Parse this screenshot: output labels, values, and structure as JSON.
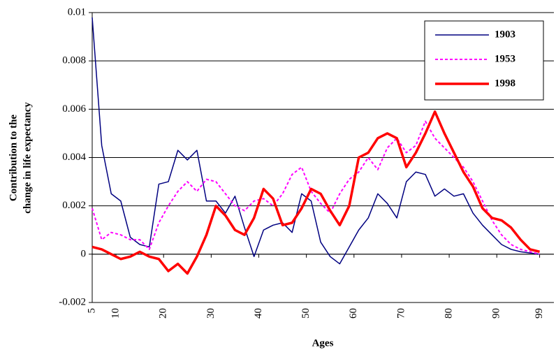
{
  "chart_data": {
    "type": "line",
    "ylabel": [
      "Contribution to the",
      "change in life expectancy"
    ],
    "xlabel": "Ages",
    "x": [
      5,
      7,
      9,
      11,
      13,
      15,
      17,
      19,
      21,
      23,
      25,
      27,
      29,
      31,
      33,
      35,
      37,
      39,
      41,
      43,
      45,
      47,
      49,
      51,
      53,
      55,
      57,
      59,
      61,
      63,
      65,
      67,
      69,
      71,
      73,
      75,
      77,
      79,
      81,
      83,
      85,
      87,
      89,
      91,
      93,
      95,
      97,
      99
    ],
    "series": [
      {
        "name": "1903",
        "color": "#000080",
        "linestyle": "solid",
        "values": [
          0.0098,
          0.0045,
          0.0025,
          0.0022,
          0.0007,
          0.0004,
          0.0003,
          0.0029,
          0.003,
          0.0043,
          0.0039,
          0.0043,
          0.0022,
          0.0022,
          0.0017,
          0.0024,
          0.0011,
          -0.0001,
          0.001,
          0.0012,
          0.0013,
          0.0009,
          0.0025,
          0.0022,
          0.0005,
          -0.0001,
          -0.0004,
          0.0003,
          0.001,
          0.0015,
          0.0025,
          0.0021,
          0.0015,
          0.003,
          0.0034,
          0.0033,
          0.0024,
          0.0027,
          0.0024,
          0.0025,
          0.0017,
          0.0012,
          0.0008,
          0.0004,
          0.0002,
          0.0001,
          5e-05,
          0
        ]
      },
      {
        "name": "1953",
        "color": "#ff00ff",
        "linestyle": "dotted",
        "values": [
          0.0019,
          0.0006,
          0.0009,
          0.0008,
          0.0006,
          0.0006,
          0.0002,
          0.0013,
          0.002,
          0.0026,
          0.003,
          0.0026,
          0.0031,
          0.003,
          0.0025,
          0.002,
          0.0018,
          0.0022,
          0.0023,
          0.002,
          0.0025,
          0.0033,
          0.0036,
          0.0026,
          0.0021,
          0.0017,
          0.0025,
          0.0031,
          0.0034,
          0.004,
          0.0035,
          0.0044,
          0.0048,
          0.0042,
          0.0045,
          0.0055,
          0.0048,
          0.0044,
          0.004,
          0.0036,
          0.003,
          0.0022,
          0.0014,
          0.0008,
          0.0004,
          0.0002,
          0.0001,
          0
        ]
      },
      {
        "name": "1998",
        "color": "#ff0000",
        "linestyle": "solid",
        "values": [
          0.0003,
          0.0002,
          0,
          -0.0002,
          -0.0001,
          0.0001,
          -0.0001,
          -0.0002,
          -0.0007,
          -0.0004,
          -0.0008,
          -0.0001,
          0.0008,
          0.002,
          0.0016,
          0.001,
          0.0008,
          0.0015,
          0.0027,
          0.0023,
          0.0012,
          0.0013,
          0.0019,
          0.0027,
          0.0025,
          0.0018,
          0.0012,
          0.002,
          0.004,
          0.0042,
          0.0048,
          0.005,
          0.0048,
          0.0036,
          0.0042,
          0.005,
          0.0059,
          0.005,
          0.0042,
          0.0034,
          0.0028,
          0.0019,
          0.0015,
          0.0014,
          0.0011,
          0.0006,
          0.0002,
          0.0001
        ]
      }
    ],
    "xlim": [
      5,
      102
    ],
    "xticks": [
      5,
      10,
      20,
      30,
      40,
      50,
      60,
      70,
      80,
      90,
      99
    ],
    "ylim": [
      -0.002,
      0.01
    ],
    "yticks": [
      -0.002,
      0,
      0.002,
      0.004,
      0.006,
      0.008,
      0.01
    ],
    "grid": true,
    "legend": "upper right"
  }
}
